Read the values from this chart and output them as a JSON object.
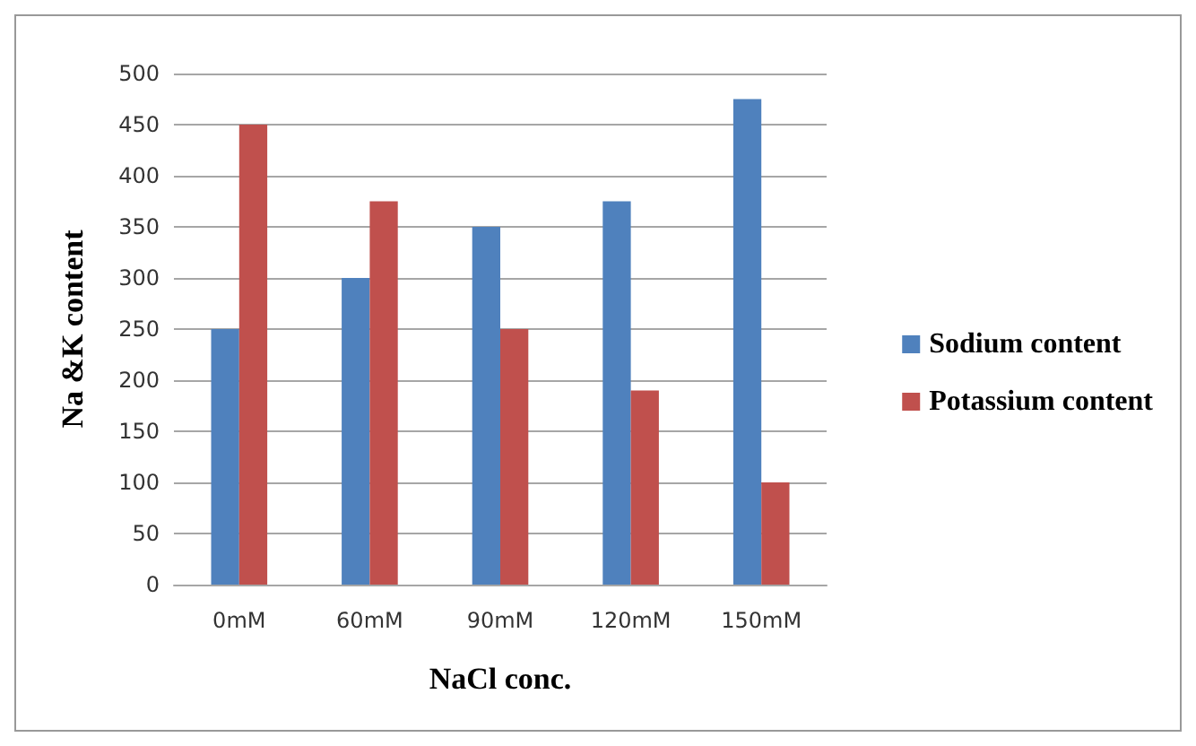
{
  "chart_data": {
    "type": "bar",
    "xlabel": "NaCl conc.",
    "ylabel": "Na &K content",
    "categories": [
      "0mM",
      "60mM",
      "90mM",
      "120mM",
      "150mM"
    ],
    "series": [
      {
        "name": "Sodium content",
        "color": "#4f81bd",
        "values": [
          250,
          300,
          350,
          375,
          475
        ]
      },
      {
        "name": "Potassium content",
        "color": "#c0504d",
        "values": [
          450,
          375,
          250,
          190,
          100
        ]
      }
    ],
    "ylim": [
      0,
      500
    ],
    "yticks": [
      0,
      50,
      100,
      150,
      200,
      250,
      300,
      350,
      400,
      450,
      500
    ],
    "grid": "y",
    "legend": "right"
  }
}
